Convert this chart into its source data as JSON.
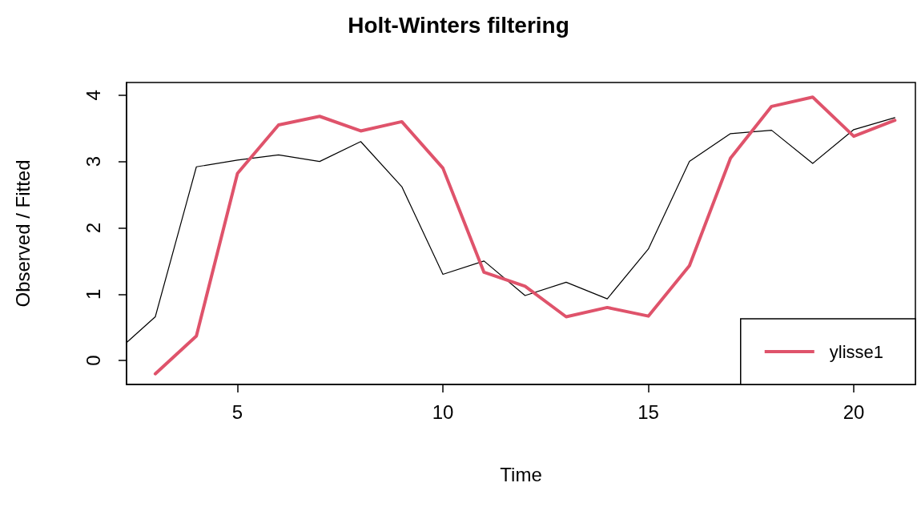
{
  "chart_data": {
    "type": "line",
    "title": "Holt-Winters filtering",
    "xlabel": "Time",
    "ylabel": "Observed / Fitted",
    "xlim": [
      2.3,
      21.5
    ],
    "xticks": [
      5,
      10,
      15,
      20
    ],
    "ylim": [
      -0.36,
      4.19
    ],
    "yticks": [
      0,
      1,
      2,
      3,
      4
    ],
    "series": [
      {
        "color": "#000000",
        "x": [
          2.3,
          3,
          4,
          5,
          6,
          7,
          8,
          9,
          10,
          11,
          12,
          13,
          14,
          15,
          16,
          17,
          18,
          19,
          20,
          21
        ],
        "values": [
          0.27,
          0.66,
          2.92,
          3.02,
          3.1,
          3.0,
          3.3,
          2.62,
          1.3,
          1.5,
          0.98,
          1.18,
          0.93,
          1.68,
          3.0,
          3.42,
          3.47,
          2.97,
          3.48,
          3.66
        ]
      },
      {
        "name": "ylisse1",
        "color": "#df536b",
        "x": [
          3,
          4,
          5,
          6,
          7,
          8,
          9,
          10,
          11,
          12,
          13,
          14,
          15,
          16,
          17,
          18,
          19,
          20,
          21
        ],
        "values": [
          -0.2,
          0.37,
          2.82,
          3.55,
          3.68,
          3.46,
          3.6,
          2.9,
          1.33,
          1.12,
          0.66,
          0.8,
          0.67,
          1.43,
          3.05,
          3.83,
          3.97,
          3.38,
          3.62
        ]
      }
    ],
    "legend": "bottom right",
    "grid": false,
    "marker": "none",
    "line_style": "solid"
  }
}
